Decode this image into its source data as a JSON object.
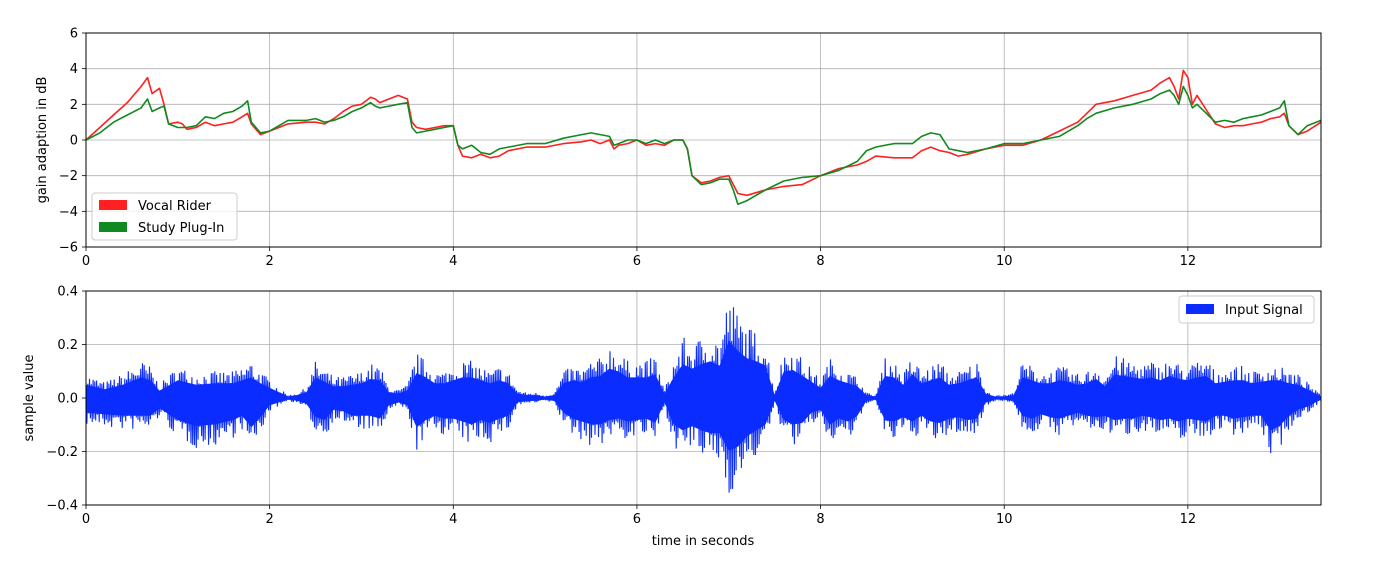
{
  "chart_data": [
    {
      "type": "line",
      "title": "",
      "xlabel": "",
      "ylabel": "gain adaption in dB",
      "xlim": [
        0,
        13.45
      ],
      "ylim": [
        -6,
        6
      ],
      "xticks": [
        "0",
        "2",
        "4",
        "6",
        "8",
        "10",
        "12"
      ],
      "yticks": [
        "6",
        "4",
        "2",
        "0",
        "−2",
        "−4",
        "−6"
      ],
      "grid": true,
      "legend_position": "lower-left",
      "series": [
        {
          "name": "Vocal Rider",
          "color": "#ff2020",
          "x": [
            0,
            0.15,
            0.3,
            0.45,
            0.6,
            0.67,
            0.72,
            0.8,
            0.85,
            0.9,
            1.0,
            1.05,
            1.1,
            1.2,
            1.3,
            1.4,
            1.5,
            1.6,
            1.7,
            1.76,
            1.8,
            1.9,
            2.0,
            2.2,
            2.4,
            2.5,
            2.6,
            2.7,
            2.8,
            2.9,
            3.0,
            3.1,
            3.15,
            3.2,
            3.3,
            3.4,
            3.5,
            3.55,
            3.6,
            3.7,
            3.8,
            3.9,
            4.0,
            4.05,
            4.1,
            4.2,
            4.3,
            4.4,
            4.5,
            4.6,
            4.8,
            5.0,
            5.2,
            5.4,
            5.5,
            5.6,
            5.7,
            5.75,
            5.8,
            5.9,
            6.0,
            6.1,
            6.2,
            6.3,
            6.4,
            6.5,
            6.55,
            6.6,
            6.7,
            6.8,
            6.9,
            7.0,
            7.05,
            7.1,
            7.2,
            7.4,
            7.6,
            7.8,
            8.0,
            8.2,
            8.4,
            8.5,
            8.6,
            8.8,
            9.0,
            9.1,
            9.2,
            9.3,
            9.4,
            9.5,
            9.6,
            9.8,
            10.0,
            10.2,
            10.4,
            10.6,
            10.8,
            10.9,
            11.0,
            11.2,
            11.4,
            11.6,
            11.7,
            11.8,
            11.85,
            11.9,
            11.95,
            12.0,
            12.05,
            12.1,
            12.3,
            12.4,
            12.5,
            12.6,
            12.7,
            12.8,
            12.9,
            13.0,
            13.05,
            13.1,
            13.2,
            13.3,
            13.45
          ],
          "values": [
            0,
            0.7,
            1.4,
            2.1,
            3.0,
            3.5,
            2.6,
            2.9,
            2.0,
            0.9,
            1.0,
            0.9,
            0.6,
            0.7,
            1.0,
            0.8,
            0.9,
            1.0,
            1.3,
            1.5,
            0.9,
            0.3,
            0.5,
            0.9,
            1.0,
            1.0,
            0.9,
            1.2,
            1.6,
            1.9,
            2.0,
            2.4,
            2.3,
            2.1,
            2.3,
            2.5,
            2.3,
            1.0,
            0.7,
            0.6,
            0.7,
            0.8,
            0.8,
            -0.3,
            -0.9,
            -1.0,
            -0.8,
            -1.0,
            -0.9,
            -0.6,
            -0.4,
            -0.4,
            -0.2,
            -0.1,
            0.0,
            -0.2,
            0.0,
            -0.5,
            -0.3,
            -0.2,
            0.0,
            -0.3,
            -0.2,
            -0.3,
            0.0,
            0.0,
            -0.5,
            -2.0,
            -2.4,
            -2.3,
            -2.1,
            -2.0,
            -2.5,
            -3.0,
            -3.1,
            -2.8,
            -2.6,
            -2.5,
            -2.0,
            -1.6,
            -1.4,
            -1.2,
            -0.9,
            -1.0,
            -1.0,
            -0.6,
            -0.4,
            -0.6,
            -0.7,
            -0.9,
            -0.8,
            -0.5,
            -0.3,
            -0.3,
            0.0,
            0.5,
            1.0,
            1.5,
            2.0,
            2.2,
            2.5,
            2.8,
            3.2,
            3.5,
            3.0,
            2.3,
            3.9,
            3.5,
            2.0,
            2.5,
            0.9,
            0.7,
            0.8,
            0.8,
            0.9,
            1.0,
            1.2,
            1.3,
            1.5,
            0.8,
            0.3,
            0.5,
            1.0
          ]
        },
        {
          "name": "Study Plug-In",
          "color": "#108a20",
          "x": [
            0,
            0.15,
            0.3,
            0.45,
            0.6,
            0.67,
            0.72,
            0.8,
            0.85,
            0.9,
            1.0,
            1.05,
            1.1,
            1.2,
            1.3,
            1.4,
            1.5,
            1.6,
            1.7,
            1.76,
            1.8,
            1.9,
            2.0,
            2.2,
            2.4,
            2.5,
            2.6,
            2.7,
            2.8,
            2.9,
            3.0,
            3.1,
            3.15,
            3.2,
            3.3,
            3.4,
            3.5,
            3.55,
            3.6,
            3.7,
            3.8,
            3.9,
            4.0,
            4.05,
            4.1,
            4.2,
            4.3,
            4.4,
            4.5,
            4.6,
            4.8,
            5.0,
            5.2,
            5.4,
            5.5,
            5.6,
            5.7,
            5.75,
            5.8,
            5.9,
            6.0,
            6.1,
            6.2,
            6.3,
            6.4,
            6.5,
            6.55,
            6.6,
            6.7,
            6.8,
            6.9,
            7.0,
            7.05,
            7.1,
            7.2,
            7.4,
            7.6,
            7.8,
            8.0,
            8.2,
            8.4,
            8.5,
            8.6,
            8.8,
            9.0,
            9.1,
            9.2,
            9.3,
            9.4,
            9.5,
            9.6,
            9.8,
            10.0,
            10.2,
            10.4,
            10.6,
            10.8,
            10.9,
            11.0,
            11.2,
            11.4,
            11.6,
            11.7,
            11.8,
            11.85,
            11.9,
            11.95,
            12.0,
            12.05,
            12.1,
            12.3,
            12.4,
            12.5,
            12.6,
            12.7,
            12.8,
            12.9,
            13.0,
            13.05,
            13.1,
            13.2,
            13.3,
            13.45
          ],
          "values": [
            0,
            0.4,
            1.0,
            1.4,
            1.8,
            2.3,
            1.6,
            1.8,
            1.9,
            0.9,
            0.7,
            0.7,
            0.7,
            0.8,
            1.3,
            1.2,
            1.5,
            1.6,
            1.9,
            2.2,
            1.0,
            0.4,
            0.5,
            1.1,
            1.1,
            1.2,
            1.0,
            1.1,
            1.3,
            1.6,
            1.8,
            2.1,
            1.9,
            1.8,
            1.9,
            2.0,
            2.1,
            0.7,
            0.4,
            0.5,
            0.6,
            0.7,
            0.8,
            -0.3,
            -0.5,
            -0.3,
            -0.7,
            -0.8,
            -0.5,
            -0.4,
            -0.2,
            -0.2,
            0.1,
            0.3,
            0.4,
            0.3,
            0.2,
            -0.3,
            -0.2,
            0.0,
            0.0,
            -0.2,
            0.0,
            -0.2,
            0.0,
            0.0,
            -0.5,
            -2.0,
            -2.5,
            -2.4,
            -2.2,
            -2.2,
            -2.8,
            -3.6,
            -3.4,
            -2.8,
            -2.3,
            -2.1,
            -2.0,
            -1.7,
            -1.2,
            -0.6,
            -0.4,
            -0.2,
            -0.2,
            0.2,
            0.4,
            0.3,
            -0.5,
            -0.6,
            -0.7,
            -0.5,
            -0.2,
            -0.2,
            0.0,
            0.2,
            0.8,
            1.2,
            1.5,
            1.8,
            2.0,
            2.3,
            2.6,
            2.8,
            2.5,
            2.0,
            3.0,
            2.5,
            1.8,
            2.0,
            1.0,
            1.1,
            1.0,
            1.2,
            1.3,
            1.4,
            1.6,
            1.8,
            2.2,
            0.8,
            0.3,
            0.8,
            1.1
          ]
        }
      ]
    },
    {
      "type": "area",
      "title": "",
      "xlabel": "time in seconds",
      "ylabel": "sample value",
      "xlim": [
        0,
        13.45
      ],
      "ylim": [
        -0.4,
        0.4
      ],
      "xticks": [
        "0",
        "2",
        "4",
        "6",
        "8",
        "10",
        "12"
      ],
      "yticks": [
        "0.4",
        "0.2",
        "0.0",
        "−0.2",
        "−0.4"
      ],
      "grid": true,
      "legend_position": "upper-right",
      "series": [
        {
          "name": "Input Signal",
          "color": "#0a2cff",
          "x": [
            0,
            0.2,
            0.4,
            0.6,
            0.7,
            0.8,
            1.0,
            1.2,
            1.4,
            1.6,
            1.7,
            1.8,
            1.9,
            2.0,
            2.2,
            2.3,
            2.4,
            2.5,
            2.6,
            2.7,
            2.8,
            2.9,
            3.0,
            3.1,
            3.2,
            3.3,
            3.4,
            3.5,
            3.6,
            3.7,
            3.8,
            3.9,
            4.0,
            4.1,
            4.2,
            4.3,
            4.4,
            4.5,
            4.6,
            4.7,
            4.8,
            4.9,
            5.0,
            5.1,
            5.2,
            5.3,
            5.4,
            5.5,
            5.6,
            5.7,
            5.8,
            5.9,
            6.0,
            6.1,
            6.2,
            6.3,
            6.4,
            6.5,
            6.6,
            6.7,
            6.8,
            6.9,
            7.0,
            7.1,
            7.2,
            7.3,
            7.4,
            7.5,
            7.6,
            7.7,
            7.8,
            7.9,
            8.0,
            8.1,
            8.2,
            8.3,
            8.4,
            8.5,
            8.6,
            8.7,
            8.8,
            8.9,
            9.0,
            9.1,
            9.2,
            9.3,
            9.4,
            9.5,
            9.6,
            9.7,
            9.8,
            9.9,
            10.0,
            10.1,
            10.2,
            10.3,
            10.4,
            10.5,
            10.6,
            10.7,
            10.8,
            10.9,
            11.0,
            11.1,
            11.2,
            11.3,
            11.4,
            11.5,
            11.6,
            11.7,
            11.8,
            11.9,
            12.0,
            12.1,
            12.2,
            12.3,
            12.4,
            12.5,
            12.6,
            12.7,
            12.8,
            12.9,
            13.0,
            13.1,
            13.2,
            13.3,
            13.45
          ],
          "upper": [
            0.09,
            0.06,
            0.09,
            0.14,
            0.12,
            0.05,
            0.12,
            0.09,
            0.1,
            0.1,
            0.12,
            0.14,
            0.1,
            0.07,
            0.01,
            0.02,
            0.04,
            0.14,
            0.11,
            0.08,
            0.08,
            0.09,
            0.1,
            0.13,
            0.12,
            0.04,
            0.03,
            0.05,
            0.17,
            0.14,
            0.1,
            0.1,
            0.12,
            0.14,
            0.14,
            0.12,
            0.1,
            0.12,
            0.1,
            0.03,
            0.02,
            0.02,
            0.01,
            0.02,
            0.1,
            0.12,
            0.11,
            0.14,
            0.15,
            0.2,
            0.18,
            0.14,
            0.14,
            0.14,
            0.16,
            0.03,
            0.14,
            0.23,
            0.2,
            0.23,
            0.25,
            0.22,
            0.39,
            0.32,
            0.27,
            0.25,
            0.22,
            0.02,
            0.18,
            0.19,
            0.15,
            0.11,
            0.07,
            0.15,
            0.12,
            0.1,
            0.08,
            0.02,
            0.01,
            0.15,
            0.14,
            0.09,
            0.16,
            0.1,
            0.12,
            0.14,
            0.09,
            0.1,
            0.12,
            0.14,
            0.03,
            0.01,
            0.01,
            0.02,
            0.14,
            0.12,
            0.1,
            0.1,
            0.12,
            0.11,
            0.09,
            0.1,
            0.13,
            0.08,
            0.16,
            0.15,
            0.14,
            0.13,
            0.14,
            0.12,
            0.15,
            0.13,
            0.12,
            0.14,
            0.15,
            0.1,
            0.11,
            0.12,
            0.12,
            0.1,
            0.11,
            0.12,
            0.12,
            0.1,
            0.09,
            0.06,
            0.01
          ],
          "lower": [
            -0.1,
            -0.11,
            -0.12,
            -0.12,
            -0.12,
            -0.07,
            -0.15,
            -0.19,
            -0.18,
            -0.15,
            -0.12,
            -0.2,
            -0.13,
            -0.05,
            -0.01,
            -0.02,
            -0.04,
            -0.13,
            -0.15,
            -0.08,
            -0.09,
            -0.12,
            -0.12,
            -0.12,
            -0.14,
            -0.05,
            -0.03,
            -0.05,
            -0.2,
            -0.15,
            -0.12,
            -0.14,
            -0.14,
            -0.16,
            -0.18,
            -0.15,
            -0.17,
            -0.14,
            -0.12,
            -0.03,
            -0.02,
            -0.02,
            -0.01,
            -0.02,
            -0.1,
            -0.14,
            -0.16,
            -0.18,
            -0.18,
            -0.15,
            -0.14,
            -0.16,
            -0.15,
            -0.14,
            -0.17,
            -0.03,
            -0.18,
            -0.22,
            -0.19,
            -0.22,
            -0.24,
            -0.24,
            -0.36,
            -0.33,
            -0.26,
            -0.22,
            -0.18,
            -0.02,
            -0.15,
            -0.18,
            -0.17,
            -0.1,
            -0.08,
            -0.18,
            -0.14,
            -0.16,
            -0.12,
            -0.02,
            -0.01,
            -0.15,
            -0.16,
            -0.13,
            -0.16,
            -0.12,
            -0.16,
            -0.17,
            -0.14,
            -0.13,
            -0.15,
            -0.14,
            -0.03,
            -0.01,
            -0.01,
            -0.02,
            -0.12,
            -0.14,
            -0.11,
            -0.13,
            -0.14,
            -0.12,
            -0.1,
            -0.12,
            -0.13,
            -0.12,
            -0.15,
            -0.14,
            -0.14,
            -0.12,
            -0.13,
            -0.15,
            -0.14,
            -0.16,
            -0.14,
            -0.15,
            -0.16,
            -0.12,
            -0.12,
            -0.14,
            -0.13,
            -0.12,
            -0.12,
            -0.22,
            -0.19,
            -0.12,
            -0.08,
            -0.06,
            -0.01
          ]
        }
      ]
    }
  ]
}
